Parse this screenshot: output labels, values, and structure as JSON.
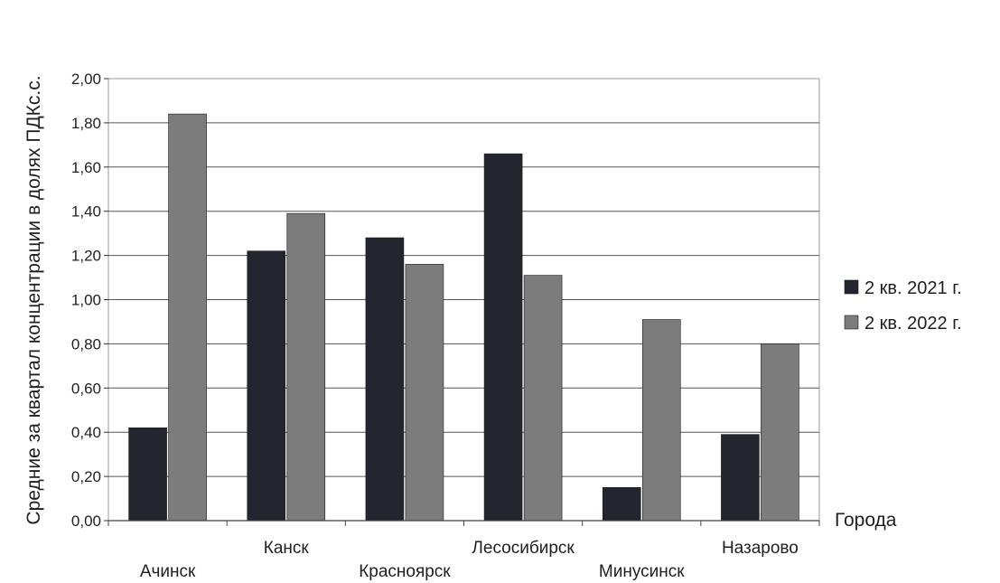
{
  "chart_data": {
    "type": "bar",
    "title": "",
    "xlabel": "Города",
    "ylabel": "Средние за квартал концентрации в долях ПДКс.с.",
    "categories": [
      "Ачинск",
      "Канск",
      "Красноярск",
      "Лесосибирск",
      "Минусинск",
      "Назарово"
    ],
    "series": [
      {
        "name": "2 кв. 2021 г.",
        "color": "#23262f",
        "values": [
          0.42,
          1.22,
          1.28,
          1.66,
          0.15,
          0.39
        ]
      },
      {
        "name": "2 кв. 2022 г.",
        "color": "#7c7c7c",
        "values": [
          1.84,
          1.39,
          1.16,
          1.11,
          0.91,
          0.8
        ]
      }
    ],
    "ylim": [
      0,
      2.0
    ],
    "yticks": [
      "0,00",
      "0,20",
      "0,40",
      "0,60",
      "0,80",
      "1,00",
      "1,20",
      "1,40",
      "1,60",
      "1,80",
      "2,00"
    ],
    "grid": true,
    "legend_position": "right"
  }
}
